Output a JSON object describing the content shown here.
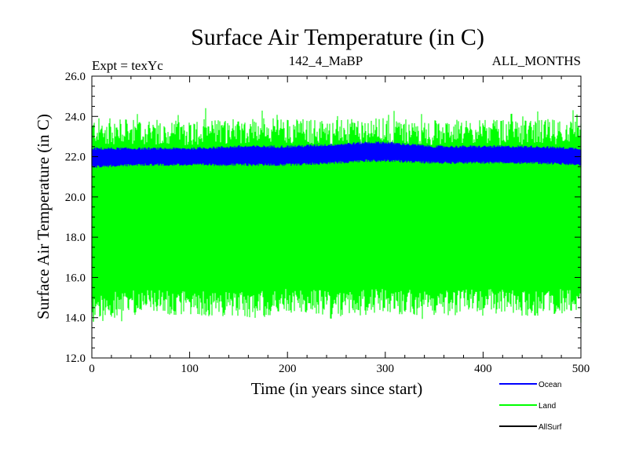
{
  "header": {
    "title": "Surface Air Temperature (in C)",
    "expt": "Expt = texYc",
    "subtitle": "142_4_MaBP",
    "months": "ALL_MONTHS"
  },
  "chart_data": {
    "type": "line",
    "title": "Surface Air Temperature (in C)",
    "xlabel": "Time (in years since start)",
    "ylabel": "Surface Air Temperature (in C)",
    "xlim": [
      0,
      500
    ],
    "ylim": [
      12.0,
      26.0
    ],
    "x_ticks": [
      "0",
      "100",
      "200",
      "300",
      "400",
      "500"
    ],
    "y_ticks": [
      "12.0",
      "14.0",
      "16.0",
      "18.0",
      "20.0",
      "22.0",
      "24.0",
      "26.0"
    ],
    "grid": false,
    "legend_position": "bottom-right",
    "series": [
      {
        "name": "Ocean",
        "color": "#0000ff",
        "x": [
          0,
          50,
          100,
          150,
          200,
          250,
          280,
          300,
          350,
          400,
          450,
          500
        ],
        "min": [
          21.5,
          21.6,
          21.6,
          21.6,
          21.6,
          21.7,
          21.8,
          21.8,
          21.7,
          21.7,
          21.7,
          21.6
        ],
        "max": [
          22.4,
          22.4,
          22.4,
          22.5,
          22.5,
          22.6,
          22.7,
          22.7,
          22.5,
          22.5,
          22.5,
          22.4
        ]
      },
      {
        "name": "Land",
        "color": "#00ff00",
        "x": [
          0,
          50,
          100,
          150,
          200,
          250,
          300,
          350,
          400,
          450,
          500
        ],
        "min": [
          14.5,
          14.8,
          14.7,
          14.6,
          14.8,
          14.7,
          14.8,
          14.7,
          14.8,
          14.7,
          14.9
        ],
        "max": [
          23.3,
          23.2,
          23.2,
          23.3,
          23.3,
          23.2,
          23.3,
          23.2,
          23.2,
          23.2,
          23.3
        ],
        "min_extreme": 13.8,
        "max_extreme": 24.1
      },
      {
        "name": "AllSurf",
        "color": "#000000",
        "x": [],
        "min": [],
        "max": []
      }
    ]
  }
}
